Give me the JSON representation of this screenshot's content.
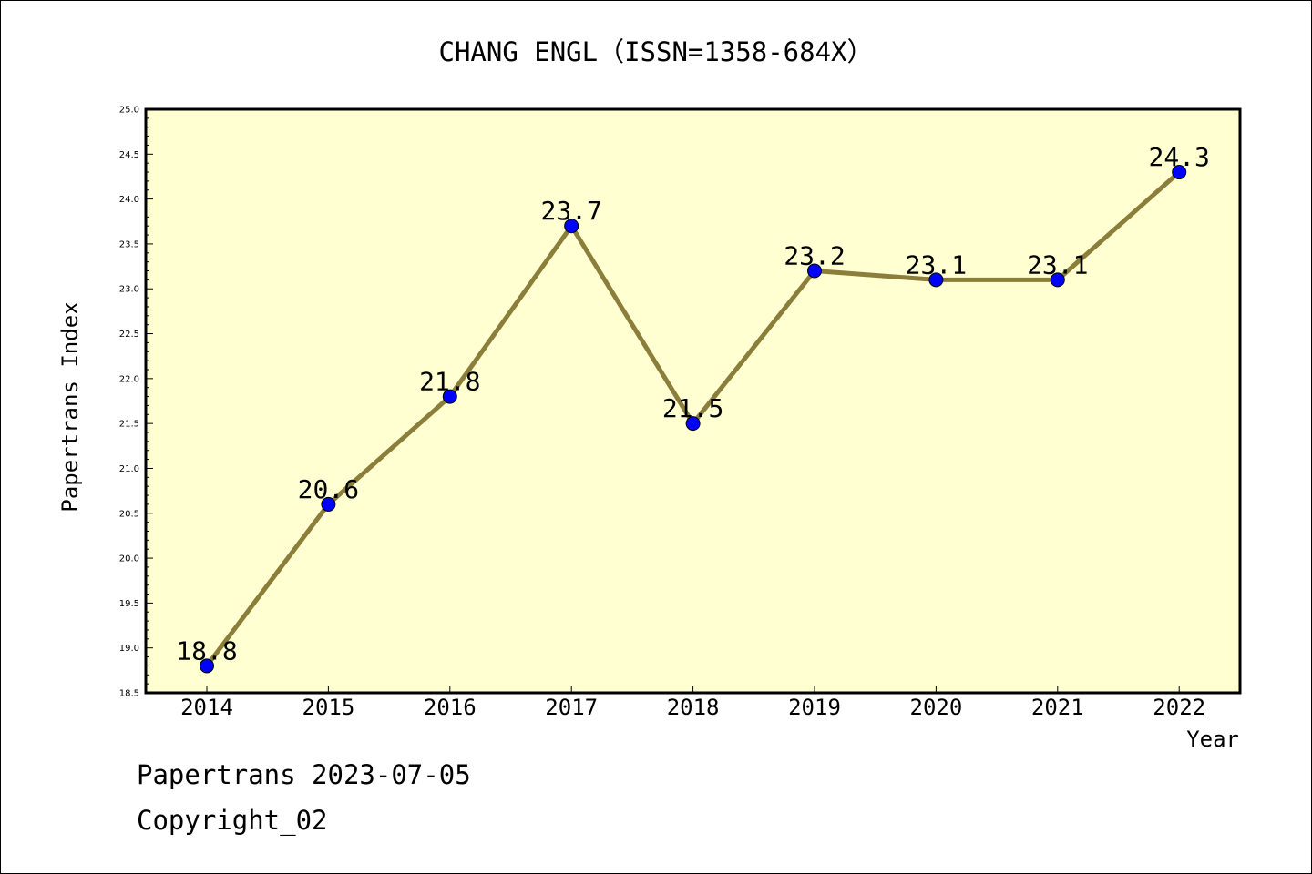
{
  "chart_data": {
    "type": "line",
    "title": "CHANG ENGL（ISSN=1358-684X）",
    "xlabel": "Year",
    "ylabel": "Papertrans Index",
    "categories": [
      "2014",
      "2015",
      "2016",
      "2017",
      "2018",
      "2019",
      "2020",
      "2021",
      "2022"
    ],
    "values": [
      18.8,
      20.6,
      21.8,
      23.7,
      21.5,
      23.2,
      23.1,
      23.1,
      24.3
    ],
    "data_labels": [
      "18.8",
      "20.6",
      "21.8",
      "23.7",
      "21.5",
      "23.2",
      "23.1",
      "23.1",
      "24.3"
    ],
    "ylim": [
      18.5,
      25.0
    ],
    "ytick_step": 0.5,
    "grid": false,
    "colors": {
      "plot_background": "#ffffd2",
      "line": "#8b7d3a",
      "marker": "#0000ff"
    }
  },
  "footer": {
    "line1": "Papertrans 2023-07-05",
    "line2": "Copyright_02"
  }
}
